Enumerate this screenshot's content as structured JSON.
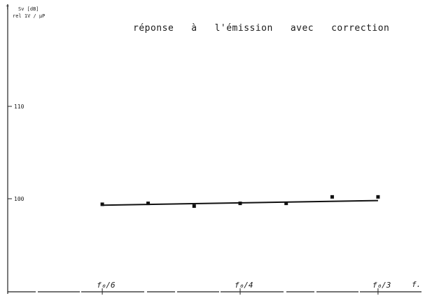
{
  "chart_data": {
    "type": "scatter",
    "title": "réponse   à   l'émission   avec   correction",
    "ylabel_line1": "Sv  [dB]",
    "ylabel_line2": "rel 1V / μP",
    "xlabel": "f.",
    "ylim": [
      90,
      120
    ],
    "x_ticks": [
      {
        "value": 0.1667,
        "label": "f₀/6"
      },
      {
        "value": 0.25,
        "label": "f₀/4"
      },
      {
        "value": 0.3333,
        "label": "f₀/3"
      }
    ],
    "y_ticks": [
      {
        "value": 110,
        "label": "110"
      },
      {
        "value": 100,
        "label": "100"
      }
    ],
    "points": [
      {
        "x": 0.1667,
        "y": 99.4
      },
      {
        "x": 0.1944,
        "y": 99.5
      },
      {
        "x": 0.2222,
        "y": 99.2
      },
      {
        "x": 0.25,
        "y": 99.5
      },
      {
        "x": 0.2778,
        "y": 99.5
      },
      {
        "x": 0.3056,
        "y": 100.2
      },
      {
        "x": 0.3333,
        "y": 100.2
      }
    ],
    "fit_line": [
      {
        "x": 0.1667,
        "y": 99.3
      },
      {
        "x": 0.3333,
        "y": 99.8
      }
    ],
    "grid": false,
    "legend": "none"
  }
}
